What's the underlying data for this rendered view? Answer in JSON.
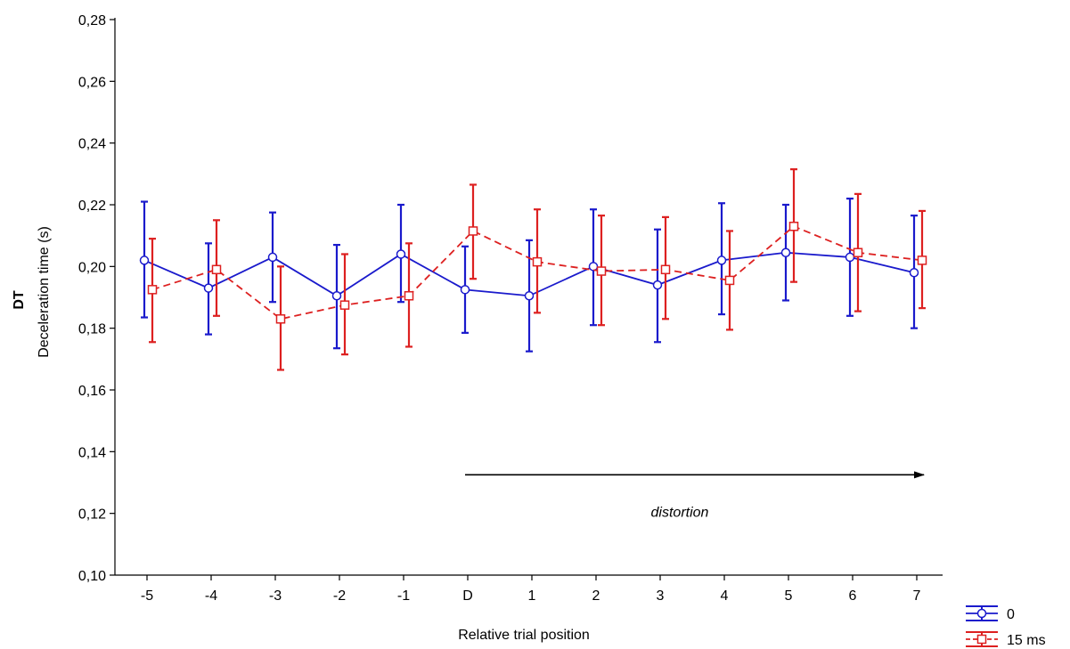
{
  "chart_data": {
    "type": "line",
    "xlabel": "Relative trial position",
    "ylabel_bold": "DT",
    "ylabel": "Deceleration time (s)",
    "categories": [
      "-5",
      "-4",
      "-3",
      "-2",
      "-1",
      "D",
      "1",
      "2",
      "3",
      "4",
      "5",
      "6",
      "7"
    ],
    "y_ticks": [
      "0,10",
      "0,12",
      "0,14",
      "0,16",
      "0,18",
      "0,20",
      "0,22",
      "0,24",
      "0,26",
      "0,28"
    ],
    "ylim": [
      0.1,
      0.28
    ],
    "grid": false,
    "legend_position": "bottom-right",
    "series": [
      {
        "name": "0",
        "color": "#1a1acc",
        "line_style": "solid",
        "marker": "circle",
        "values": [
          0.202,
          0.193,
          0.203,
          0.1905,
          0.204,
          0.1925,
          0.1905,
          0.2,
          0.194,
          0.202,
          0.2045,
          0.203,
          0.198
        ],
        "err_low": [
          0.1835,
          0.178,
          0.1885,
          0.1735,
          0.1885,
          0.1785,
          0.1725,
          0.181,
          0.1755,
          0.1845,
          0.189,
          0.184,
          0.18
        ],
        "err_high": [
          0.221,
          0.2075,
          0.2175,
          0.207,
          0.22,
          0.2065,
          0.2085,
          0.2185,
          0.212,
          0.2205,
          0.22,
          0.222,
          0.2165
        ]
      },
      {
        "name": "15 ms",
        "color": "#dd2020",
        "line_style": "dashed",
        "marker": "square",
        "values": [
          0.1925,
          0.199,
          0.183,
          0.1875,
          0.1905,
          0.2115,
          0.2015,
          0.1985,
          0.199,
          0.1955,
          0.213,
          0.2045,
          0.202
        ],
        "err_low": [
          0.1755,
          0.184,
          0.1665,
          0.1715,
          0.174,
          0.196,
          0.185,
          0.181,
          0.183,
          0.1795,
          0.195,
          0.1855,
          0.1865
        ],
        "err_high": [
          0.209,
          0.215,
          0.2,
          0.204,
          0.2075,
          0.2265,
          0.2185,
          0.2165,
          0.216,
          0.2115,
          0.2315,
          0.2235,
          0.218
        ]
      }
    ],
    "annotation": {
      "text": "distortion",
      "x_start": "D",
      "x_end": "7",
      "y": 0.1325
    }
  }
}
